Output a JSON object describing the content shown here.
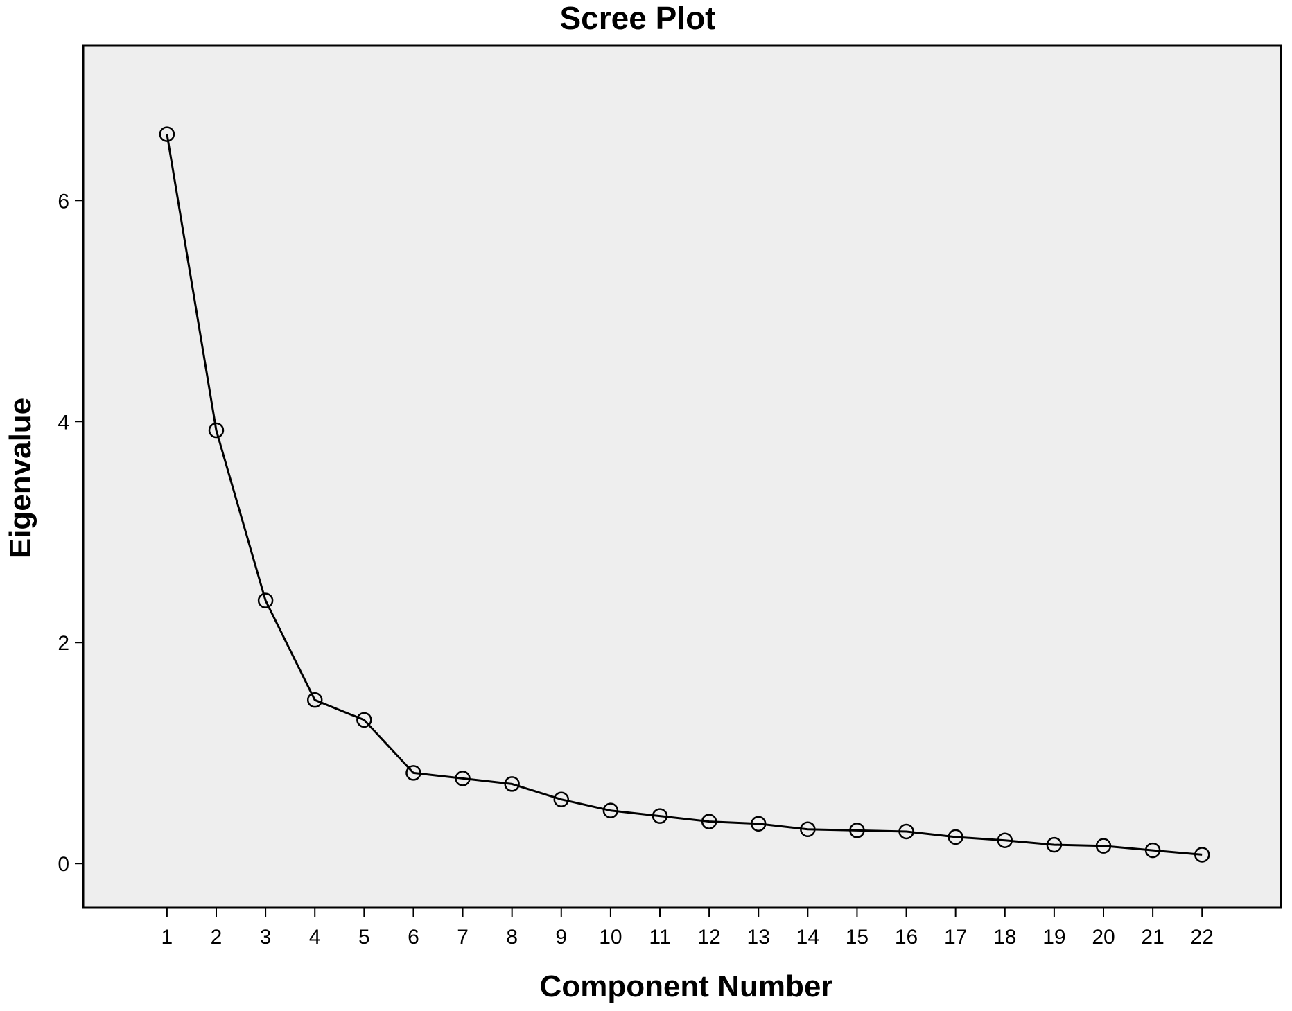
{
  "chart_data": {
    "type": "line",
    "title": "Scree Plot",
    "xlabel": "Component Number",
    "ylabel": "Eigenvalue",
    "x": [
      1,
      2,
      3,
      4,
      5,
      6,
      7,
      8,
      9,
      10,
      11,
      12,
      13,
      14,
      15,
      16,
      17,
      18,
      19,
      20,
      21,
      22
    ],
    "y": [
      6.6,
      3.92,
      2.38,
      1.48,
      1.3,
      0.82,
      0.77,
      0.72,
      0.58,
      0.48,
      0.43,
      0.38,
      0.36,
      0.31,
      0.3,
      0.29,
      0.24,
      0.21,
      0.17,
      0.16,
      0.12,
      0.08
    ],
    "x_ticks": [
      "1",
      "2",
      "3",
      "4",
      "5",
      "6",
      "7",
      "8",
      "9",
      "10",
      "11",
      "12",
      "13",
      "14",
      "15",
      "16",
      "17",
      "18",
      "19",
      "20",
      "21",
      "22"
    ],
    "y_ticks": [
      "0",
      "2",
      "4",
      "6"
    ],
    "xlim": [
      -0.7,
      23.6
    ],
    "ylim": [
      -0.4,
      7.4
    ],
    "marker": "open-circle",
    "grid": false,
    "colors": {
      "plot_background": "#eeeeee",
      "line": "#000000",
      "frame": "#000000"
    }
  }
}
